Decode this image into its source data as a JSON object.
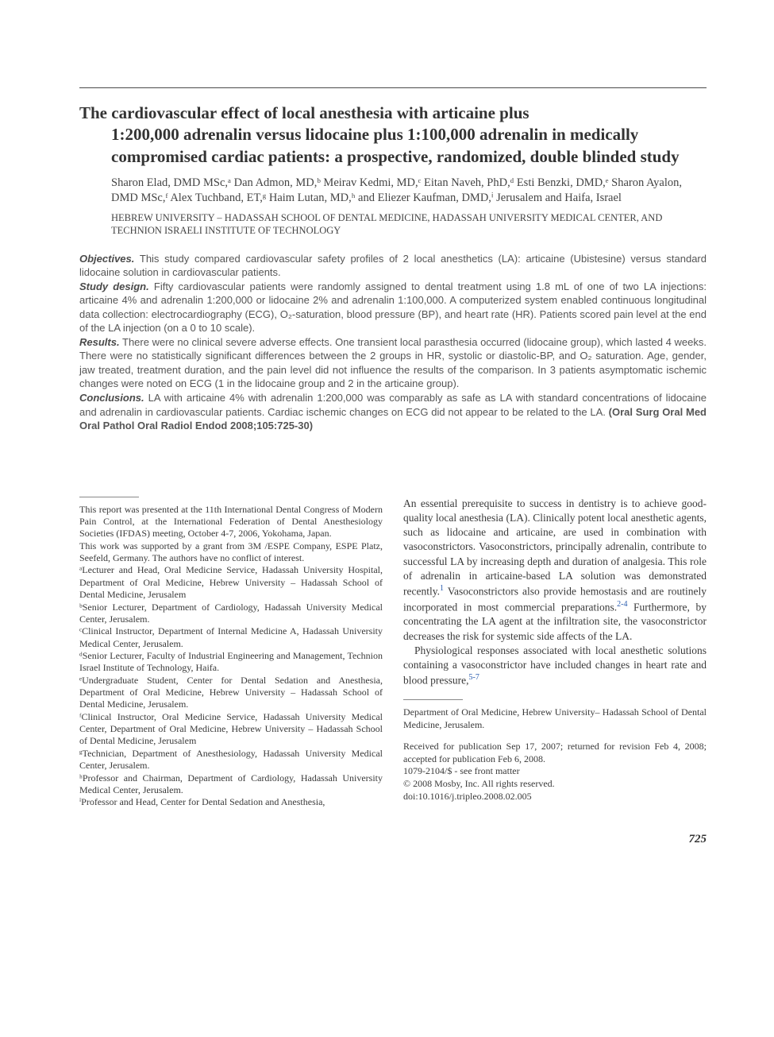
{
  "colors": {
    "text": "#3a3a3a",
    "background": "#ffffff",
    "ref_link": "#2a5db0",
    "rule": "#4a4a4a"
  },
  "typography": {
    "body_family": "Times New Roman",
    "sans_family": "Helvetica Neue",
    "title_fontsize": 21,
    "body_fontsize": 13.5,
    "abstract_fontsize": 13,
    "footnote_fontsize": 12
  },
  "title_line1": "The cardiovascular effect of local anesthesia with articaine plus",
  "title_rest": "1:200,000 adrenalin versus lidocaine plus 1:100,000 adrenalin in medically compromised cardiac patients: a prospective, randomized, double blinded study",
  "authors_html": "Sharon Elad, DMD MSc,ᵃ Dan Admon, MD,ᵇ Meirav Kedmi, MD,ᶜ Eitan Naveh, PhD,ᵈ Esti Benzki, DMD,ᵉ Sharon Ayalon, DMD MSc,ᶠ Alex Tuchband, ET,ᵍ Haim Lutan, MD,ʰ and Eliezer Kaufman, DMD,ⁱ Jerusalem and Haifa, Israel",
  "affiliation": "HEBREW UNIVERSITY – HADASSAH SCHOOL OF DENTAL MEDICINE, HADASSAH UNIVERSITY MEDICAL CENTER, AND TECHNION ISRAELI INSTITUTE OF TECHNOLOGY",
  "abstract": {
    "objectives_label": "Objectives.",
    "objectives": "This study compared cardiovascular safety profiles of 2 local anesthetics (LA): articaine (Ubistesine) versus standard lidocaine solution in cardiovascular patients.",
    "design_label": "Study design.",
    "design": "Fifty cardiovascular patients were randomly assigned to dental treatment using 1.8 mL of one of two LA injections: articaine 4% and adrenalin 1:200,000 or lidocaine 2% and adrenalin 1:100,000. A computerized system enabled continuous longitudinal data collection: electrocardiography (ECG), O₂-saturation, blood pressure (BP), and heart rate (HR). Patients scored pain level at the end of the LA injection (on a 0 to 10 scale).",
    "results_label": "Results.",
    "results": "There were no clinical severe adverse effects. One transient local parasthesia occurred (lidocaine group), which lasted 4 weeks. There were no statistically significant differences between the 2 groups in HR, systolic or diastolic-BP, and O₂ saturation. Age, gender, jaw treated, treatment duration, and the pain level did not influence the results of the comparison. In 3 patients asymptomatic ischemic changes were noted on ECG (1 in the lidocaine group and 2 in the articaine group).",
    "conclusions_label": "Conclusions.",
    "conclusions": "LA with articaine 4% with adrenalin 1:200,000 was comparably as safe as LA with standard concentrations of lidocaine and adrenalin in cardiovascular patients. Cardiac ischemic changes on ECG did not appear to be related to the LA.",
    "citation": "(Oral Surg Oral Med Oral Pathol Oral Radiol Endod 2008;105:725-30)"
  },
  "left_footnotes": [
    "This report was presented at the 11th International Dental Congress of Modern Pain Control, at the International Federation of Dental Anesthesiology Societies (IFDAS) meeting, October 4-7, 2006, Yokohama, Japan.",
    "This work was supported by a grant from 3M /ESPE Company, ESPE Platz, Seefeld, Germany. The authors have no conflict of interest.",
    "ᵃLecturer and Head, Oral Medicine Service, Hadassah University Hospital, Department of Oral Medicine, Hebrew University – Hadassah School of Dental Medicine, Jerusalem",
    "ᵇSenior Lecturer, Department of Cardiology, Hadassah University Medical Center, Jerusalem.",
    "ᶜClinical Instructor, Department of Internal Medicine A, Hadassah University Medical Center, Jerusalem.",
    "ᵈSenior Lecturer, Faculty of Industrial Engineering and Management, Technion Israel Institute of Technology, Haifa.",
    "ᵉUndergraduate Student, Center for Dental Sedation and Anesthesia, Department of Oral Medicine, Hebrew University – Hadassah School of Dental Medicine, Jerusalem.",
    "ᶠClinical Instructor, Oral Medicine Service, Hadassah University Medical Center, Department of Oral Medicine, Hebrew University – Hadassah School of Dental Medicine, Jerusalem",
    "ᵍTechnician, Department of Anesthesiology, Hadassah University Medical Center, Jerusalem.",
    "ʰProfessor and Chairman, Department of Cardiology, Hadassah University Medical Center, Jerusalem.",
    "ⁱProfessor and Head, Center for Dental Sedation and Anesthesia,"
  ],
  "body": {
    "p1_a": "An essential prerequisite to success in dentistry is to achieve good-quality local anesthesia (LA). Clinically potent local anesthetic agents, such as lidocaine and articaine, are used in combination with vasoconstrictors. Vasoconstrictors, principally adrenalin, contribute to successful LA by increasing depth and duration of analgesia. This role of adrenalin in articaine-based LA solution was demonstrated recently.",
    "ref1": "1",
    "p1_b": " Vasoconstrictors also provide hemostasis and are routinely incorporated in most commercial preparations.",
    "ref2": "2-4",
    "p1_c": " Furthermore, by concentrating the LA agent at the infiltration site, the vasoconstrictor decreases the risk for systemic side affects of the LA.",
    "p2_a": "Physiological responses associated with local anesthetic solutions containing a vasoconstrictor have included changes in heart rate and blood pressure,",
    "ref3": "5-7"
  },
  "right_footnotes": [
    "Department of Oral Medicine, Hebrew University– Hadassah School of Dental Medicine, Jerusalem.",
    "",
    "Received for publication Sep 17, 2007; returned for revision Feb 4, 2008; accepted for publication Feb 6, 2008.",
    "1079-2104/$ - see front matter",
    "© 2008 Mosby, Inc. All rights reserved.",
    "doi:10.1016/j.tripleo.2008.02.005"
  ],
  "page_number": "725"
}
